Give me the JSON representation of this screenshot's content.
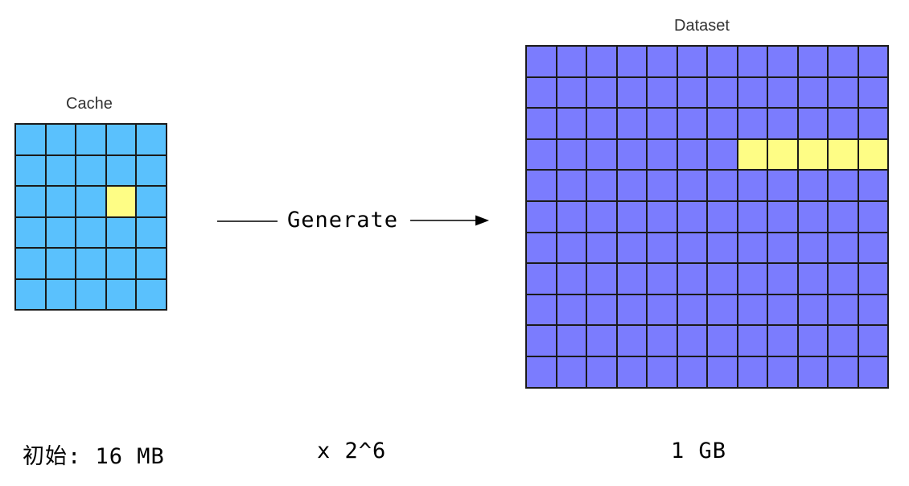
{
  "cache": {
    "title": "Cache",
    "rows": 6,
    "cols": 5,
    "highlight": [
      [
        2,
        3
      ]
    ],
    "fill_color": "#5ac1fd",
    "highlight_color": "#fefd85"
  },
  "dataset": {
    "title": "Dataset",
    "rows": 11,
    "cols": 12,
    "highlight": [
      [
        3,
        7
      ],
      [
        3,
        8
      ],
      [
        3,
        9
      ],
      [
        3,
        10
      ],
      [
        3,
        11
      ]
    ],
    "fill_color": "#7b7cfe",
    "highlight_color": "#fefd85"
  },
  "arrow": {
    "label": "Generate"
  },
  "footer": {
    "initial_size": "初始: 16 MB",
    "multiplier": "x 2^6",
    "final_size": "1 GB"
  }
}
